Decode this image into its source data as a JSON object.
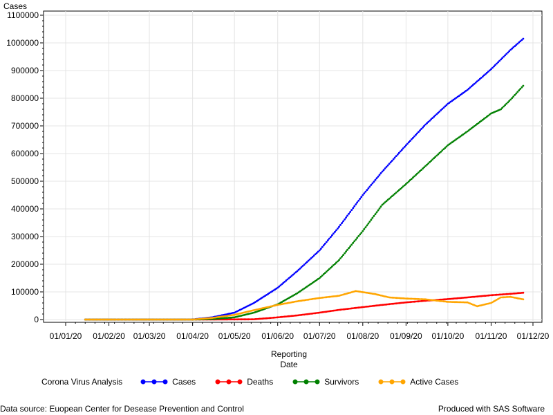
{
  "chart_data": {
    "type": "line",
    "ylabel": "Cases",
    "xlabel_lines": [
      "Reporting",
      "Date"
    ],
    "ylim": [
      0,
      1100000
    ],
    "y_ticks": [
      "0",
      "100000",
      "200000",
      "300000",
      "400000",
      "500000",
      "600000",
      "700000",
      "800000",
      "900000",
      "1000000",
      "1100000"
    ],
    "x_start": "2020-01-01",
    "x_end": "2020-12-01",
    "x_tick_dates": [
      "2020-01-01",
      "2020-02-01",
      "2020-03-01",
      "2020-04-01",
      "2020-05-01",
      "2020-06-01",
      "2020-07-01",
      "2020-08-01",
      "2020-09-01",
      "2020-10-01",
      "2020-11-01",
      "2020-12-01"
    ],
    "x_tick_labels": [
      "01/01/20",
      "01/02/20",
      "01/03/20",
      "01/04/20",
      "01/05/20",
      "01/06/20",
      "01/07/20",
      "01/08/20",
      "01/09/20",
      "01/10/20",
      "01/11/20",
      "01/12/20"
    ],
    "grid": true,
    "legend_position": "bottom",
    "series": [
      {
        "name": "Cases",
        "color": "#0000ff",
        "points": [
          [
            "2020-01-15",
            0
          ],
          [
            "2020-03-31",
            0
          ],
          [
            "2020-04-15",
            8000
          ],
          [
            "2020-05-01",
            25000
          ],
          [
            "2020-05-15",
            60000
          ],
          [
            "2020-06-01",
            115000
          ],
          [
            "2020-06-15",
            175000
          ],
          [
            "2020-07-01",
            250000
          ],
          [
            "2020-07-15",
            335000
          ],
          [
            "2020-08-01",
            450000
          ],
          [
            "2020-08-15",
            535000
          ],
          [
            "2020-09-01",
            630000
          ],
          [
            "2020-09-15",
            705000
          ],
          [
            "2020-10-01",
            780000
          ],
          [
            "2020-10-15",
            830000
          ],
          [
            "2020-11-01",
            905000
          ],
          [
            "2020-11-15",
            975000
          ],
          [
            "2020-11-24",
            1015000
          ]
        ]
      },
      {
        "name": "Deaths",
        "color": "#ff0000",
        "points": [
          [
            "2020-01-15",
            0
          ],
          [
            "2020-04-15",
            0
          ],
          [
            "2020-05-15",
            1000
          ],
          [
            "2020-06-01",
            8000
          ],
          [
            "2020-06-15",
            15000
          ],
          [
            "2020-07-01",
            25000
          ],
          [
            "2020-07-15",
            35000
          ],
          [
            "2020-08-01",
            45000
          ],
          [
            "2020-08-15",
            53000
          ],
          [
            "2020-09-01",
            62000
          ],
          [
            "2020-09-15",
            68000
          ],
          [
            "2020-10-01",
            74000
          ],
          [
            "2020-10-15",
            80000
          ],
          [
            "2020-11-01",
            88000
          ],
          [
            "2020-11-15",
            93000
          ],
          [
            "2020-11-24",
            97000
          ]
        ]
      },
      {
        "name": "Survivors",
        "color": "#008000",
        "points": [
          [
            "2020-01-15",
            0
          ],
          [
            "2020-04-01",
            0
          ],
          [
            "2020-04-15",
            2000
          ],
          [
            "2020-05-01",
            8000
          ],
          [
            "2020-05-15",
            25000
          ],
          [
            "2020-06-01",
            55000
          ],
          [
            "2020-06-15",
            95000
          ],
          [
            "2020-07-01",
            150000
          ],
          [
            "2020-07-15",
            215000
          ],
          [
            "2020-08-01",
            320000
          ],
          [
            "2020-08-15",
            415000
          ],
          [
            "2020-09-01",
            490000
          ],
          [
            "2020-09-15",
            555000
          ],
          [
            "2020-10-01",
            630000
          ],
          [
            "2020-10-15",
            680000
          ],
          [
            "2020-11-01",
            745000
          ],
          [
            "2020-11-08",
            760000
          ],
          [
            "2020-11-15",
            795000
          ],
          [
            "2020-11-24",
            845000
          ]
        ]
      },
      {
        "name": "Active Cases",
        "color": "#ffa500",
        "points": [
          [
            "2020-01-15",
            0
          ],
          [
            "2020-04-01",
            0
          ],
          [
            "2020-04-15",
            6000
          ],
          [
            "2020-05-01",
            17000
          ],
          [
            "2020-05-15",
            34000
          ],
          [
            "2020-06-01",
            53000
          ],
          [
            "2020-06-15",
            66000
          ],
          [
            "2020-07-01",
            78000
          ],
          [
            "2020-07-15",
            86000
          ],
          [
            "2020-07-27",
            103000
          ],
          [
            "2020-08-10",
            92000
          ],
          [
            "2020-08-20",
            80000
          ],
          [
            "2020-09-01",
            76000
          ],
          [
            "2020-09-15",
            73000
          ],
          [
            "2020-10-01",
            64000
          ],
          [
            "2020-10-15",
            62000
          ],
          [
            "2020-10-22",
            48000
          ],
          [
            "2020-11-01",
            60000
          ],
          [
            "2020-11-08",
            80000
          ],
          [
            "2020-11-15",
            82000
          ],
          [
            "2020-11-24",
            73000
          ]
        ]
      }
    ]
  },
  "legend": {
    "title": "Corona Virus Analysis"
  },
  "footer": {
    "source": "Data source: Euopean Center for Desease Prevention and Control",
    "credit": "Produced with SAS Software"
  }
}
